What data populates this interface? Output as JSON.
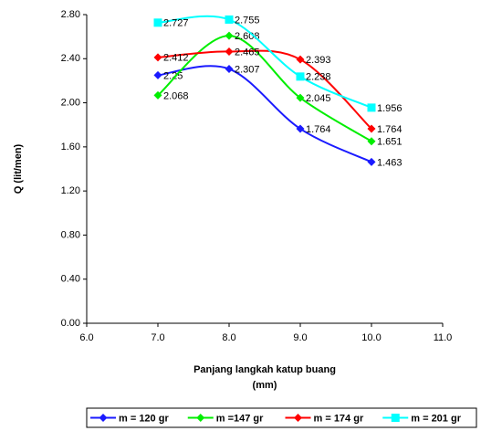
{
  "chart_data": {
    "type": "line",
    "ylabel": "Q (lit/men)",
    "xlabel_lines": [
      "Panjang langkah katup buang",
      "(mm)"
    ],
    "x": [
      7,
      8,
      9,
      10
    ],
    "series": [
      {
        "name": "m = 120 gr",
        "color": "#1a1aff",
        "marker": "diamond",
        "values": [
          2.25,
          2.307,
          1.764,
          1.463
        ]
      },
      {
        "name": "m =147 gr",
        "color": "#00ee00",
        "marker": "diamond",
        "values": [
          2.068,
          2.608,
          2.045,
          1.651
        ]
      },
      {
        "name": "m = 174 gr",
        "color": "#ff0000",
        "marker": "diamond",
        "values": [
          2.412,
          2.465,
          2.393,
          1.764
        ]
      },
      {
        "name": "m = 201 gr",
        "color": "#00ffff",
        "marker": "square",
        "values": [
          2.727,
          2.755,
          2.238,
          1.956
        ]
      }
    ],
    "xlim": [
      6,
      11
    ],
    "xticks": [
      {
        "value": 6,
        "label": "6.0"
      },
      {
        "value": 7,
        "label": "7.0"
      },
      {
        "value": 8,
        "label": "8.0"
      },
      {
        "value": 9,
        "label": "9.0"
      },
      {
        "value": 10,
        "label": "10.0"
      },
      {
        "value": 11,
        "label": "11.0"
      }
    ],
    "ylim": [
      0,
      2.8
    ],
    "yticks": [
      {
        "value": 0,
        "label": "0.00"
      },
      {
        "value": 0.4,
        "label": "0.40"
      },
      {
        "value": 0.8,
        "label": "0.80"
      },
      {
        "value": 1.2,
        "label": "1.20"
      },
      {
        "value": 1.6,
        "label": "1.60"
      },
      {
        "value": 2.0,
        "label": "2.00"
      },
      {
        "value": 2.4,
        "label": "2.40"
      },
      {
        "value": 2.8,
        "label": "2.80"
      }
    ],
    "smooth": true,
    "grid": false,
    "legend": "bottom"
  }
}
